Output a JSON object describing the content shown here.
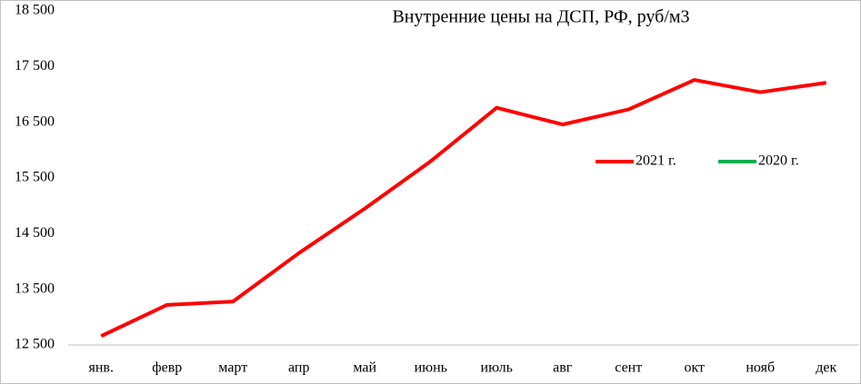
{
  "chart_data": {
    "type": "line",
    "title": "Внутренние цены на ДСП, РФ, руб/м3",
    "categories": [
      "янв.",
      "февр",
      "март",
      "апр",
      "май",
      "июнь",
      "июль",
      "авг",
      "сент",
      "окт",
      "нояб",
      "дек"
    ],
    "series": [
      {
        "name": "2021 г.",
        "color": "#ff0000",
        "values": [
          12660,
          13220,
          13280,
          14150,
          14950,
          15800,
          16760,
          16460,
          16730,
          17260,
          17040,
          17210
        ]
      },
      {
        "name": "2020 г.",
        "color": "#00b050",
        "values": [
          null,
          null,
          null,
          null,
          null,
          null,
          null,
          null,
          null,
          null,
          null,
          null
        ]
      }
    ],
    "ylim": [
      12500,
      18500
    ],
    "yticks": [
      {
        "value": 12500,
        "label": "12 500"
      },
      {
        "value": 13500,
        "label": "13 500"
      },
      {
        "value": 14500,
        "label": "14 500"
      },
      {
        "value": 15500,
        "label": "15 500"
      },
      {
        "value": 16500,
        "label": "16 500"
      },
      {
        "value": 17500,
        "label": "17 500"
      },
      {
        "value": 18500,
        "label": "18 500"
      }
    ],
    "grid": false
  }
}
